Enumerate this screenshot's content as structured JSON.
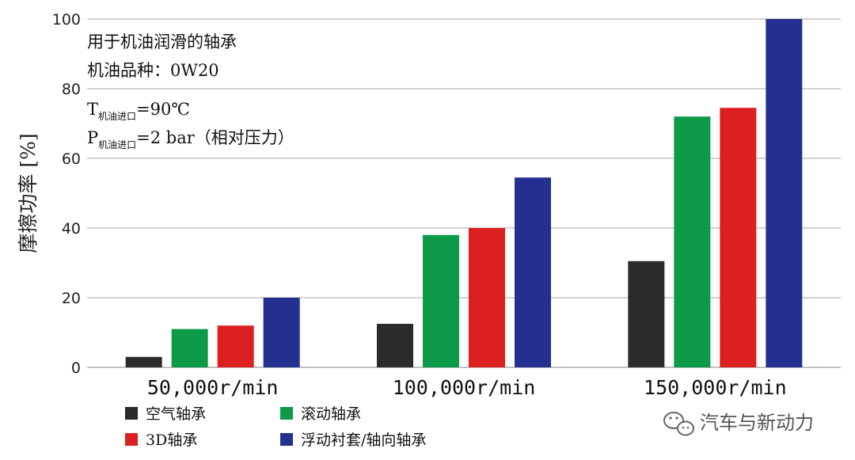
{
  "chart_data": {
    "type": "bar",
    "categories": [
      "50,000r/min",
      "100,000r/min",
      "150,000r/min"
    ],
    "series": [
      {
        "name": "空气轴承",
        "values": [
          3,
          12.5,
          30.5
        ],
        "color": "#2b2b2b"
      },
      {
        "name": "滚动轴承",
        "values": [
          11,
          38,
          72
        ],
        "color": "#0c9a48"
      },
      {
        "name": "3D轴承",
        "values": [
          12,
          40,
          74.5
        ],
        "color": "#dc2020"
      },
      {
        "name": "浮动衬套/轴向轴承",
        "values": [
          20,
          54.5,
          100
        ],
        "color": "#24308f"
      }
    ],
    "ylabel": "摩擦功率  [%]",
    "ylim": [
      0,
      100
    ],
    "yticks": [
      "0",
      "20",
      "40",
      "60",
      "80",
      "100"
    ],
    "grid": true,
    "legend_position": "bottom-left"
  },
  "annotations": {
    "line1": "用于机油润滑的轴承",
    "line2": "机油品种：0W20",
    "t_main": "T",
    "t_sub": "机油进口",
    "t_value": "=90℃",
    "p_main": "P",
    "p_sub": "机油进口",
    "p_value": "=2 bar（相对压力）"
  },
  "watermark": {
    "text": "汽车与新动力",
    "icon": "wechat-icon"
  }
}
